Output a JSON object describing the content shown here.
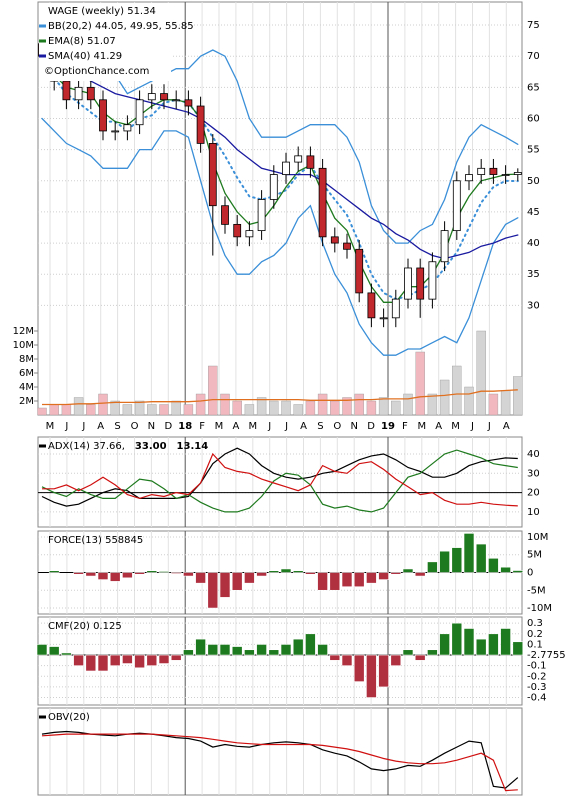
{
  "chart_data": [
    {
      "type": "candlestick",
      "title": "WAGE (weekly) 51.34",
      "watermark": "©OptionChance.com",
      "ylim": [
        12.4,
        78.7
      ],
      "yticks": [
        30,
        35,
        40,
        45,
        50,
        55,
        60,
        65,
        70,
        75
      ],
      "grid": true,
      "x_labels": [
        "M",
        "J",
        "J",
        "A",
        "S",
        "O",
        "N",
        "D",
        "18",
        "F",
        "M",
        "A",
        "M",
        "J",
        "J",
        "A",
        "S",
        "O",
        "N",
        "D",
        "19",
        "F",
        "M",
        "A",
        "M",
        "J",
        "J",
        "A"
      ],
      "up_color": "#ffffff",
      "down_color": "#c0282d",
      "open": [
        72,
        70,
        66,
        63,
        65,
        63,
        58,
        58,
        59,
        63,
        64,
        63,
        63,
        62,
        56,
        46,
        43,
        41,
        42,
        47,
        51,
        53,
        54,
        52,
        41,
        40,
        39,
        32,
        28,
        28,
        31,
        36,
        31,
        37,
        42,
        50,
        51,
        52,
        51,
        51
      ],
      "high": [
        73.5,
        71.5,
        67.5,
        66.5,
        66.5,
        64.5,
        59.5,
        60.5,
        64.5,
        65.5,
        65.5,
        64.5,
        64.5,
        63.5,
        57.5,
        47.5,
        44.5,
        43.5,
        48.5,
        52.5,
        54.5,
        55.5,
        55.5,
        53.5,
        42.5,
        41.5,
        40.5,
        33.5,
        29.5,
        32.5,
        37.5,
        37.5,
        38.5,
        43.5,
        51.5,
        52.5,
        53.5,
        53.5,
        52.5,
        52
      ],
      "low": [
        68.5,
        64.5,
        61.5,
        61.5,
        61.5,
        56.5,
        56.5,
        56.5,
        57.5,
        61.5,
        61.5,
        61.5,
        60.5,
        54.5,
        38,
        41.5,
        39.5,
        39.5,
        40.5,
        45.5,
        49.5,
        51.5,
        50.5,
        39.5,
        38.5,
        37.5,
        30.5,
        26.5,
        26.5,
        26.5,
        29.5,
        28,
        29.5,
        35.5,
        40.5,
        48.5,
        49.5,
        49.5,
        49.5,
        50
      ],
      "close": [
        70,
        66,
        63,
        65,
        63,
        58,
        58,
        59,
        63,
        64,
        63,
        63,
        62,
        56,
        46,
        43,
        41,
        42,
        47,
        51,
        53,
        54,
        52,
        41,
        40,
        39,
        32,
        28,
        28,
        31,
        36,
        31,
        37,
        42,
        50,
        51,
        52,
        51,
        51,
        51.34
      ],
      "series": [
        {
          "name": "BB(20,2) 44.05, 49.95, 55.85",
          "color": "#3a8fd8",
          "style": "solid",
          "values": [
            76,
            75,
            72,
            70,
            68,
            67,
            67,
            64,
            65,
            66,
            67,
            68,
            68,
            70,
            71,
            70,
            66,
            60,
            57,
            57,
            57,
            58,
            59,
            59,
            59,
            57,
            53,
            46,
            42,
            40,
            40,
            42,
            43,
            47,
            53,
            57,
            59,
            58,
            57,
            55.85
          ]
        },
        {
          "color": "#3a8fd8",
          "style": "solid",
          "values": [
            60,
            58,
            56,
            55,
            54,
            52,
            52,
            52,
            55,
            55,
            58,
            58,
            57,
            50,
            43,
            38,
            35,
            35,
            37,
            38,
            40,
            44,
            46,
            40,
            35,
            32,
            27,
            24,
            22,
            22,
            23,
            23,
            24,
            25,
            24,
            28,
            34,
            40,
            43,
            44.05
          ]
        },
        {
          "color": "#3a8fd8",
          "style": "dotted",
          "values": [
            68,
            66.5,
            64,
            62.5,
            61,
            59.5,
            59.5,
            58,
            60,
            60.5,
            62.5,
            63,
            62.5,
            60,
            57,
            54,
            50.5,
            47.5,
            47,
            47.5,
            48.5,
            51,
            52.5,
            49.5,
            47,
            44.5,
            40,
            35,
            32,
            31,
            31.5,
            32.5,
            33.5,
            36,
            38.5,
            42.5,
            46.5,
            49,
            50,
            49.95
          ]
        },
        {
          "name": "EMA(8) 51.07",
          "color": "#1e7a1e",
          "style": "solid",
          "values": [
            70,
            67,
            65,
            64.5,
            64,
            61,
            59.5,
            59,
            60.5,
            62,
            63,
            63,
            62.5,
            60,
            53,
            48,
            45,
            43,
            43.5,
            46,
            49,
            51.5,
            52.5,
            48,
            44,
            42,
            37,
            33,
            30.5,
            30.5,
            33,
            33,
            35,
            38.5,
            44,
            47.5,
            50,
            50.5,
            51,
            51.07
          ]
        },
        {
          "name": "SMA(40) 41.29",
          "color": "#1a1aa0",
          "style": "solid",
          "values": [
            70,
            69,
            68,
            67,
            66,
            65,
            64,
            63.5,
            63,
            62.5,
            62,
            61.5,
            61,
            60,
            58.5,
            57,
            55,
            53.5,
            52,
            51.5,
            51,
            51,
            51,
            50,
            48.5,
            47,
            45.5,
            44,
            43,
            41.5,
            40.5,
            39,
            38,
            37.5,
            38,
            38.5,
            39.5,
            40,
            40.8,
            41.29
          ]
        }
      ],
      "volume": {
        "ylim": [
          0,
          59
        ],
        "yticks": [
          {
            "value": 2,
            "label": "2M"
          },
          {
            "value": 4,
            "label": "4M"
          },
          {
            "value": 6,
            "label": "6M"
          },
          {
            "value": 8,
            "label": "8M"
          },
          {
            "value": 10,
            "label": "10M"
          },
          {
            "value": 12,
            "label": "12M"
          }
        ],
        "up_color": "#d4d4d4",
        "down_color": "#f2b8c0",
        "values": [
          1,
          1.5,
          1.5,
          2.5,
          1.5,
          3,
          2,
          1.5,
          2,
          1.5,
          1.5,
          2,
          1.5,
          3,
          7,
          3,
          2,
          1.5,
          2.5,
          2,
          2,
          1.5,
          2,
          3,
          2,
          2.5,
          3,
          2,
          2.5,
          2,
          3,
          9,
          3,
          5,
          7,
          4,
          12,
          3,
          3.5,
          5.5
        ],
        "ma": {
          "color": "#e07020",
          "values": [
            1.5,
            1.5,
            1.5,
            1.6,
            1.6,
            1.7,
            1.8,
            1.8,
            1.8,
            1.9,
            1.9,
            1.9,
            1.9,
            2,
            2.2,
            2.2,
            2.2,
            2.2,
            2.2,
            2.2,
            2.2,
            2.2,
            2.1,
            2.1,
            2.1,
            2.1,
            2.2,
            2.2,
            2.3,
            2.3,
            2.3,
            2.6,
            2.7,
            2.8,
            3,
            3,
            3.4,
            3.4,
            3.5,
            3.6
          ]
        }
      }
    },
    {
      "type": "line",
      "ylim": [
        2.2,
        48.8
      ],
      "yticks": [
        10,
        20,
        30,
        40
      ],
      "hline": 20,
      "series": [
        {
          "name": "ADX(14) 37.66,",
          "color": "#000000",
          "values": [
            18,
            15,
            13,
            14,
            17,
            20,
            22,
            21,
            17,
            17,
            17,
            17,
            18,
            25,
            35,
            40,
            43,
            40,
            34,
            30,
            28,
            27,
            28,
            30,
            31,
            34,
            37,
            39,
            40,
            37,
            33,
            31,
            28,
            28,
            30,
            34,
            36,
            37,
            38,
            37.66
          ]
        },
        {
          "name": "33.00",
          "color": "#1e7a1e",
          "values": [
            23,
            20,
            18,
            22,
            19,
            17,
            17,
            22,
            27,
            26,
            22,
            17,
            19,
            15,
            12,
            10,
            10,
            12,
            18,
            26,
            30,
            29,
            24,
            14,
            12,
            13,
            11,
            10,
            12,
            20,
            28,
            30,
            35,
            40,
            42,
            40,
            38,
            35,
            34,
            33
          ]
        },
        {
          "name": "13.14",
          "color": "#d01010",
          "values": [
            22,
            22,
            24,
            21,
            24,
            28,
            24,
            19,
            17,
            19,
            18,
            20,
            19,
            25,
            40,
            33,
            31,
            30,
            27,
            25,
            23,
            21,
            24,
            34,
            31,
            30,
            35,
            36,
            32,
            27,
            23,
            19,
            20,
            16,
            14,
            14,
            15,
            14,
            13.5,
            13.14
          ]
        }
      ]
    },
    {
      "type": "bar",
      "title": "FORCE(13) 558845",
      "ylim": [
        -11.67,
        11.67
      ],
      "yticks": [
        {
          "value": -10,
          "label": "-10M"
        },
        {
          "value": -5,
          "label": "-5M"
        },
        0,
        {
          "value": 5,
          "label": "5M"
        },
        {
          "value": 10,
          "label": "10M"
        }
      ],
      "pos_color": "#1e7a1e",
      "neg_color": "#b03040",
      "values": [
        0,
        0.5,
        0,
        -0.5,
        -1,
        -2,
        -2.5,
        -1.5,
        -0.5,
        0.5,
        0.3,
        -0.3,
        -1,
        -3,
        -10,
        -7,
        -5,
        -3,
        -1,
        0.5,
        1,
        0.5,
        -0.5,
        -5,
        -5,
        -4,
        -4,
        -3,
        -2,
        -0.5,
        1,
        -1,
        3,
        6,
        7,
        11,
        8,
        4,
        1.5,
        0.558845
      ]
    },
    {
      "type": "bar",
      "title": "CMF(20) 0.125",
      "ylim": [
        -0.47,
        0.358
      ],
      "yticks": [
        -0.4,
        -0.3,
        -0.2,
        -0.1,
        {
          "value": -2.7755e-17,
          "label": "-2.7755"
        },
        0.1,
        0.2,
        0.3
      ],
      "pos_color": "#1e7a1e",
      "neg_color": "#b03040",
      "values": [
        0.1,
        0.08,
        0.02,
        -0.1,
        -0.15,
        -0.15,
        -0.1,
        -0.08,
        -0.12,
        -0.1,
        -0.08,
        -0.05,
        0.05,
        0.15,
        0.1,
        0.1,
        0.08,
        0.05,
        0.1,
        0.05,
        0.1,
        0.15,
        0.2,
        0.1,
        -0.05,
        -0.1,
        -0.25,
        -0.4,
        -0.3,
        -0.1,
        0.05,
        -0.05,
        0.05,
        0.2,
        0.3,
        0.25,
        0.15,
        0.2,
        0.25,
        0.125
      ]
    },
    {
      "type": "line",
      "ylim": [
        0,
        100
      ],
      "yticks": [],
      "series": [
        {
          "name": "OBV(20)",
          "color": "#000000",
          "values": [
            70,
            72,
            73,
            72,
            70,
            69,
            68,
            70,
            71,
            70,
            68,
            66,
            65,
            62,
            55,
            58,
            56,
            55,
            58,
            60,
            61,
            60,
            58,
            52,
            48,
            45,
            38,
            30,
            28,
            30,
            34,
            33,
            40,
            48,
            55,
            62,
            60,
            10,
            8,
            20
          ]
        },
        {
          "color": "#d01010",
          "values": [
            68,
            69,
            70,
            70,
            70,
            70,
            70,
            70,
            70,
            70,
            69,
            68,
            67,
            66,
            64,
            62,
            60,
            59,
            58,
            58,
            58,
            58,
            58,
            57,
            55,
            53,
            50,
            46,
            42,
            39,
            37,
            36,
            36,
            37,
            40,
            44,
            48,
            40,
            5,
            6
          ]
        }
      ]
    }
  ]
}
